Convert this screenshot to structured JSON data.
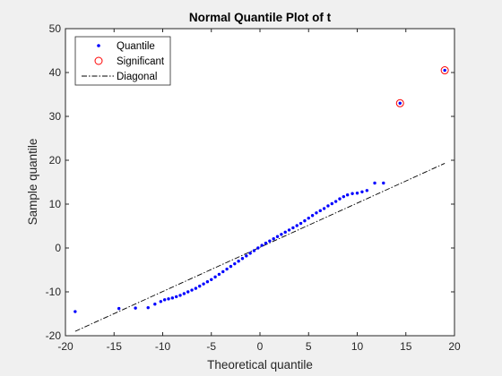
{
  "chart_data": {
    "type": "scatter",
    "title": "Normal Quantile Plot of t",
    "xlabel": "Theoretical quantile",
    "ylabel": "Sample quantile",
    "xlim": [
      -20,
      20
    ],
    "ylim": [
      -20,
      50
    ],
    "xticks": [
      -20,
      -15,
      -10,
      -5,
      0,
      5,
      10,
      15,
      20
    ],
    "yticks": [
      -20,
      -10,
      0,
      10,
      20,
      30,
      40,
      50
    ],
    "grid": false,
    "legend_position": "top-left",
    "legend": [
      "Quantile",
      "Significant",
      "Diagonal"
    ],
    "colors": {
      "quantile": "#0000ff",
      "significant": "#ff0000",
      "diagonal": "#000000",
      "axes_bg": "#ffffff",
      "figure_bg": "#f0f0f0"
    },
    "series": [
      {
        "name": "Quantile",
        "style": "dots",
        "points": [
          [
            -19,
            -14.5
          ],
          [
            -14.5,
            -13.8
          ],
          [
            -12.8,
            -13.7
          ],
          [
            -11.5,
            -13.6
          ],
          [
            -10.8,
            -12.8
          ],
          [
            -10.2,
            -12.2
          ],
          [
            -9.8,
            -11.8
          ],
          [
            -9.4,
            -11.6
          ],
          [
            -9.0,
            -11.4
          ],
          [
            -8.6,
            -11.1
          ],
          [
            -8.2,
            -10.8
          ],
          [
            -7.8,
            -10.4
          ],
          [
            -7.4,
            -10.0
          ],
          [
            -7.0,
            -9.6
          ],
          [
            -6.6,
            -9.2
          ],
          [
            -6.2,
            -8.7
          ],
          [
            -5.8,
            -8.2
          ],
          [
            -5.4,
            -7.7
          ],
          [
            -5.0,
            -7.2
          ],
          [
            -4.6,
            -6.6
          ],
          [
            -4.2,
            -6.0
          ],
          [
            -3.8,
            -5.4
          ],
          [
            -3.4,
            -4.8
          ],
          [
            -3.0,
            -4.2
          ],
          [
            -2.6,
            -3.6
          ],
          [
            -2.2,
            -3.0
          ],
          [
            -1.8,
            -2.4
          ],
          [
            -1.4,
            -1.8
          ],
          [
            -1.0,
            -1.2
          ],
          [
            -0.6,
            -0.6
          ],
          [
            -0.2,
            0.0
          ],
          [
            0.2,
            0.6
          ],
          [
            0.6,
            1.1
          ],
          [
            1.0,
            1.6
          ],
          [
            1.4,
            2.1
          ],
          [
            1.8,
            2.6
          ],
          [
            2.2,
            3.1
          ],
          [
            2.6,
            3.6
          ],
          [
            3.0,
            4.1
          ],
          [
            3.4,
            4.6
          ],
          [
            3.8,
            5.1
          ],
          [
            4.2,
            5.6
          ],
          [
            4.6,
            6.2
          ],
          [
            5.0,
            6.8
          ],
          [
            5.4,
            7.4
          ],
          [
            5.8,
            8.0
          ],
          [
            6.2,
            8.5
          ],
          [
            6.6,
            9.0
          ],
          [
            7.0,
            9.6
          ],
          [
            7.4,
            10.1
          ],
          [
            7.8,
            10.6
          ],
          [
            8.2,
            11.2
          ],
          [
            8.6,
            11.7
          ],
          [
            9.0,
            12.1
          ],
          [
            9.5,
            12.4
          ],
          [
            10.0,
            12.5
          ],
          [
            10.5,
            12.8
          ],
          [
            11.0,
            13.1
          ],
          [
            11.8,
            14.8
          ],
          [
            12.7,
            14.8
          ]
        ]
      },
      {
        "name": "Significant",
        "style": "circles",
        "points": [
          [
            14.4,
            33
          ],
          [
            19,
            40.5
          ]
        ]
      },
      {
        "name": "Diagonal",
        "style": "dash-dot-line",
        "points": [
          [
            -19,
            -19
          ],
          [
            19,
            19.3
          ]
        ]
      }
    ]
  }
}
